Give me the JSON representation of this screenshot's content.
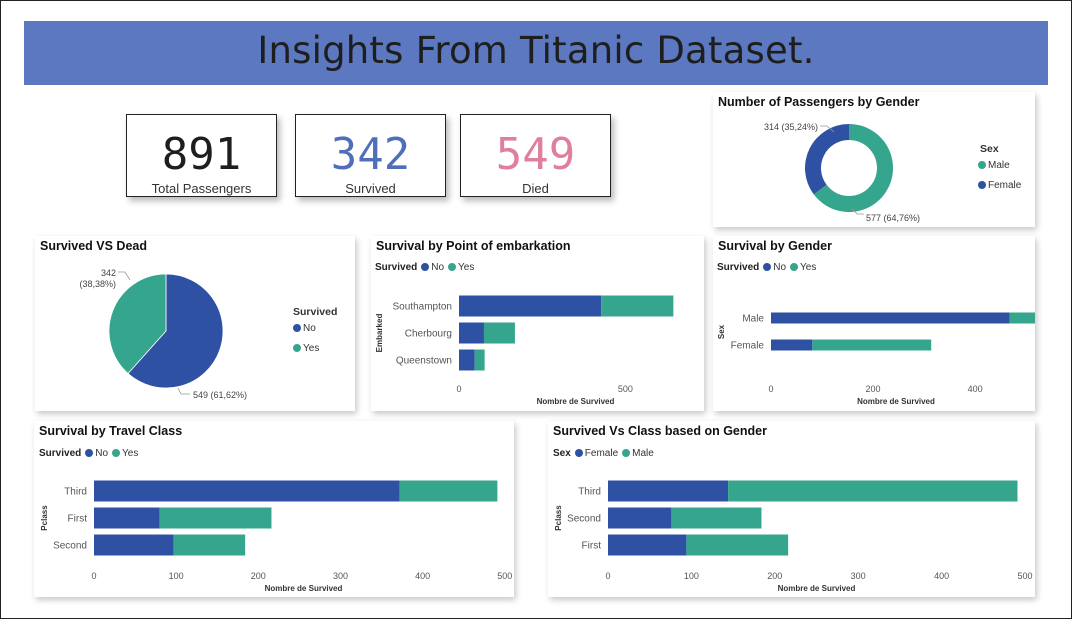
{
  "header": {
    "title": "Insights From Titanic Dataset."
  },
  "kpis": [
    {
      "value": "891",
      "label": "Total Passengers",
      "color": "#1e1e1e"
    },
    {
      "value": "342",
      "label": "Survived",
      "color": "#4f6fbb"
    },
    {
      "value": "549",
      "label": "Died",
      "color": "#e07f9b"
    }
  ],
  "colors": {
    "no": "#2f51a3",
    "yes": "#35a58d",
    "female": "#2f51a3",
    "male": "#35a58d"
  },
  "chart_data": [
    {
      "id": "gender-donut",
      "type": "pie",
      "title": "Number of Passengers by Gender",
      "legend_title": "Sex",
      "legend_position": "right",
      "slices": [
        {
          "name": "Male",
          "value": 577,
          "label": "577 (64,76%)"
        },
        {
          "name": "Female",
          "value": 314,
          "label": "314 (35,24%)"
        }
      ]
    },
    {
      "id": "survived-pie",
      "type": "pie",
      "title": "Survived VS Dead",
      "legend_title": "Survived",
      "legend_position": "right",
      "slices": [
        {
          "name": "No",
          "value": 549,
          "label": "549 (61,62%)"
        },
        {
          "name": "Yes",
          "value": 342,
          "label_line1": "342",
          "label_line2": "(38,38%)"
        }
      ]
    },
    {
      "id": "embark-bar",
      "type": "bar",
      "title": "Survival by Point of embarkation",
      "legend_title": "Survived",
      "legend_items": [
        "No",
        "Yes"
      ],
      "ylabel": "Embarked",
      "xlabel": "Nombre de Survived",
      "categories": [
        "Southampton",
        "Cherbourg",
        "Queenstown"
      ],
      "series": [
        {
          "name": "No",
          "values": [
            427,
            75,
            47
          ]
        },
        {
          "name": "Yes",
          "values": [
            217,
            93,
            30
          ]
        }
      ],
      "xlim": [
        0,
        700
      ],
      "xticks": [
        0,
        500
      ]
    },
    {
      "id": "gender-bar",
      "type": "bar",
      "title": "Survival by Gender",
      "legend_title": "Survived",
      "legend_items": [
        "No",
        "Yes"
      ],
      "ylabel": "Sex",
      "xlabel": "Nombre de Survived",
      "categories": [
        "Male",
        "Female"
      ],
      "series": [
        {
          "name": "No",
          "values": [
            468,
            81
          ]
        },
        {
          "name": "Yes",
          "values": [
            109,
            233
          ]
        }
      ],
      "xlim": [
        0,
        490
      ],
      "xticks": [
        0,
        200,
        400
      ]
    },
    {
      "id": "class-bar",
      "type": "bar",
      "title": "Survival by Travel Class",
      "legend_title": "Survived",
      "legend_items": [
        "No",
        "Yes"
      ],
      "ylabel": "Pclass",
      "xlabel": "Nombre de Survived",
      "categories": [
        "Third",
        "First",
        "Second"
      ],
      "series": [
        {
          "name": "No",
          "values": [
            372,
            80,
            97
          ]
        },
        {
          "name": "Yes",
          "values": [
            119,
            136,
            87
          ]
        }
      ],
      "xlim": [
        0,
        510
      ],
      "xticks": [
        0,
        100,
        200,
        300,
        400,
        500
      ]
    },
    {
      "id": "class-gender-bar",
      "type": "bar",
      "title": "Survived Vs Class based on Gender",
      "legend_title": "Sex",
      "legend_items": [
        "Female",
        "Male"
      ],
      "ylabel": "Pclass",
      "xlabel": "Nombre de Survived",
      "categories": [
        "Third",
        "Second",
        "First"
      ],
      "series": [
        {
          "name": "Female",
          "values": [
            144,
            76,
            94
          ]
        },
        {
          "name": "Male",
          "values": [
            347,
            108,
            122
          ]
        }
      ],
      "xlim": [
        0,
        500
      ],
      "xticks": [
        0,
        100,
        200,
        300,
        400,
        500
      ]
    }
  ]
}
